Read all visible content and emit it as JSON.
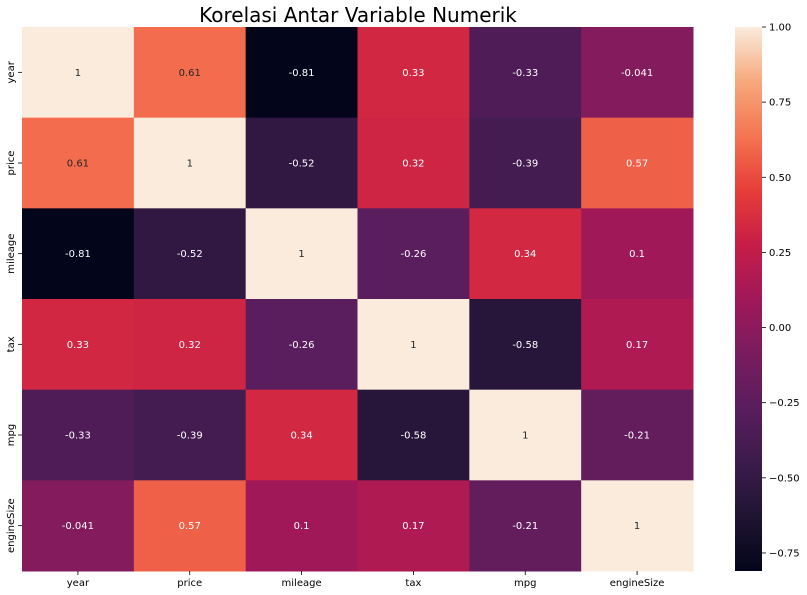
{
  "chart_data": {
    "type": "heatmap",
    "title": "Korelasi Antar Variable Numerik",
    "xlabel": "",
    "ylabel": "",
    "x_categories": [
      "year",
      "price",
      "mileage",
      "tax",
      "mpg",
      "engineSize"
    ],
    "y_categories": [
      "year",
      "price",
      "mileage",
      "tax",
      "mpg",
      "engineSize"
    ],
    "values": [
      [
        1,
        0.61,
        -0.81,
        0.33,
        -0.33,
        -0.041
      ],
      [
        0.61,
        1,
        -0.52,
        0.32,
        -0.39,
        0.57
      ],
      [
        -0.81,
        -0.52,
        1,
        -0.26,
        0.34,
        0.1
      ],
      [
        0.33,
        0.32,
        -0.26,
        1,
        -0.58,
        0.17
      ],
      [
        -0.33,
        -0.39,
        0.34,
        -0.58,
        1,
        -0.21
      ],
      [
        -0.041,
        0.57,
        0.1,
        0.17,
        -0.21,
        1
      ]
    ],
    "annotations": [
      [
        "1",
        "0.61",
        "-0.81",
        "0.33",
        "-0.33",
        "-0.041"
      ],
      [
        "0.61",
        "1",
        "-0.52",
        "0.32",
        "-0.39",
        "0.57"
      ],
      [
        "-0.81",
        "-0.52",
        "1",
        "-0.26",
        "0.34",
        "0.1"
      ],
      [
        "0.33",
        "0.32",
        "-0.26",
        "1",
        "-0.58",
        "0.17"
      ],
      [
        "-0.33",
        "-0.39",
        "0.34",
        "-0.58",
        "1",
        "-0.21"
      ],
      [
        "-0.041",
        "0.57",
        "0.1",
        "0.17",
        "-0.21",
        "1"
      ]
    ],
    "colorbar": {
      "vmin": -0.81,
      "vmax": 1,
      "ticks": [
        1.0,
        0.75,
        0.5,
        0.25,
        0.0,
        -0.25,
        -0.5,
        -0.75
      ],
      "tick_labels": [
        "1.00",
        "0.75",
        "0.50",
        "0.25",
        "0.00",
        "−0.25",
        "−0.50",
        "−0.75"
      ]
    },
    "colormap": "rocket",
    "grid": false
  }
}
